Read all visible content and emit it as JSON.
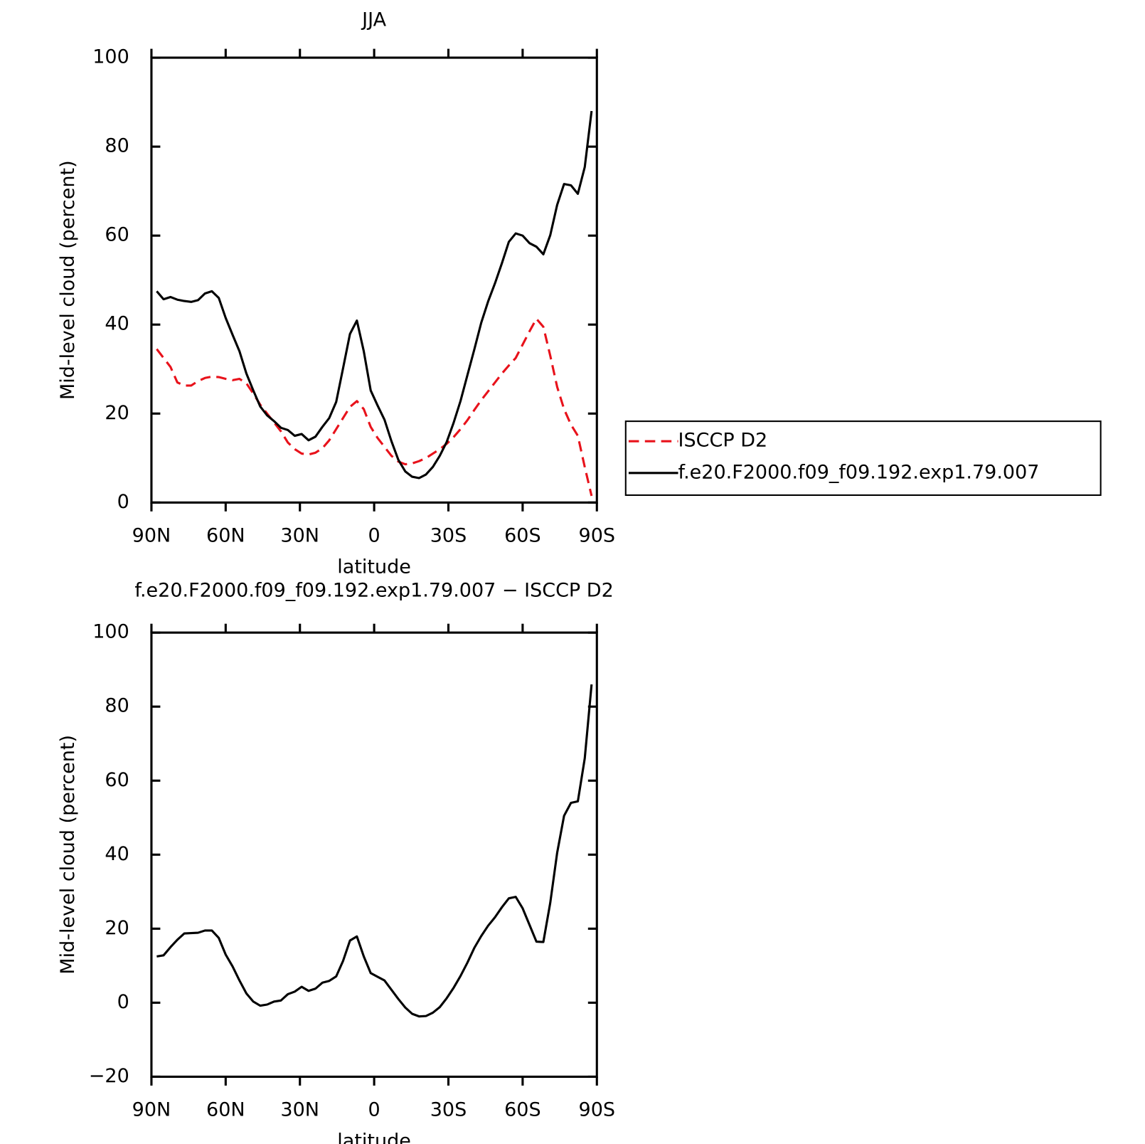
{
  "chart_data": [
    {
      "type": "line",
      "title": "JJA",
      "xlabel": "latitude",
      "ylabel": "Mid-level cloud (percent)",
      "x": [
        87.86,
        85.1,
        82.31,
        79.53,
        76.74,
        73.95,
        71.16,
        68.37,
        65.58,
        62.79,
        60.0,
        57.21,
        54.42,
        51.63,
        48.84,
        46.05,
        43.26,
        40.47,
        37.67,
        34.88,
        32.09,
        29.3,
        26.51,
        23.72,
        20.93,
        18.14,
        15.35,
        12.56,
        9.77,
        6.98,
        4.19,
        1.4,
        -1.4,
        -4.19,
        -6.98,
        -9.77,
        -12.56,
        -15.35,
        -18.14,
        -20.93,
        -23.72,
        -26.51,
        -29.3,
        -32.09,
        -34.88,
        -37.67,
        -40.47,
        -43.26,
        -46.05,
        -48.84,
        -51.63,
        -54.42,
        -57.21,
        -60.0,
        -62.79,
        -65.58,
        -68.37,
        -71.16,
        -73.95,
        -76.74,
        -79.53,
        -82.31,
        -85.1,
        -87.86
      ],
      "series": [
        {
          "name": "ISCCP D2",
          "color": "#e8121b",
          "linestyle": "dashed",
          "values": [
            34.5,
            32.5,
            30.5,
            27,
            26.3,
            26.3,
            27.3,
            28,
            28.3,
            28.2,
            27.8,
            27.5,
            27.8,
            26.8,
            24.5,
            22,
            20,
            18,
            16,
            13.5,
            12,
            11,
            10.8,
            11.2,
            12.2,
            14,
            16.5,
            19,
            21.5,
            22.8,
            21,
            17,
            14.5,
            12.5,
            10.5,
            9.2,
            8.6,
            8.8,
            9.3,
            10,
            11,
            12,
            13.2,
            14.7,
            16.5,
            18.5,
            20.8,
            23,
            25,
            27,
            29,
            30.8,
            32.5,
            35.5,
            38.5,
            41.3,
            39.5,
            33,
            26,
            21,
            17.5,
            15,
            8,
            1.5
          ]
        },
        {
          "name": "f.e20.F2000.f09_f09.192.exp1.79.007",
          "color": "#000000",
          "linestyle": "solid",
          "values": [
            47.5,
            45.7,
            46.2,
            45.6,
            45.3,
            45.1,
            45.5,
            47,
            47.5,
            46,
            41.5,
            37.7,
            34,
            29,
            25.2,
            21.6,
            19.6,
            18.3,
            16.8,
            16.3,
            15,
            15.4,
            14,
            14.8,
            17,
            19,
            22.6,
            30.2,
            37.9,
            40.9,
            34,
            25.2,
            21.8,
            18.6,
            13.8,
            9.6,
            7,
            5.8,
            5.5,
            6.3,
            8,
            10.5,
            13.6,
            17.9,
            22.8,
            28.6,
            34.4,
            40.4,
            45.2,
            49.3,
            53.8,
            58.6,
            60.5,
            60,
            58.3,
            57.5,
            55.8,
            60.1,
            66.9,
            71.6,
            71.3,
            69.4,
            75.4,
            88
          ]
        }
      ],
      "xlim": [
        90,
        -90
      ],
      "xticks": [
        {
          "value": 90,
          "label": "90N"
        },
        {
          "value": 60,
          "label": "60N"
        },
        {
          "value": 30,
          "label": "30N"
        },
        0,
        {
          "value": -30,
          "label": "30S"
        },
        {
          "value": -60,
          "label": "60S"
        },
        {
          "value": -90,
          "label": "90S"
        }
      ],
      "ylim": [
        0,
        100
      ],
      "yticks": [
        0,
        20,
        40,
        60,
        80,
        100
      ],
      "legend": "right"
    },
    {
      "type": "line",
      "title": "f.e20.F2000.f09_f09.192.exp1.79.007 − ISCCP D2",
      "xlabel": "latitude",
      "ylabel": "Mid-level cloud (percent)",
      "x": [
        87.86,
        85.1,
        82.31,
        79.53,
        76.74,
        73.95,
        71.16,
        68.37,
        65.58,
        62.79,
        60.0,
        57.21,
        54.42,
        51.63,
        48.84,
        46.05,
        43.26,
        40.47,
        37.67,
        34.88,
        32.09,
        29.3,
        26.51,
        23.72,
        20.93,
        18.14,
        15.35,
        12.56,
        9.77,
        6.98,
        4.19,
        1.4,
        -1.4,
        -4.19,
        -6.98,
        -9.77,
        -12.56,
        -15.35,
        -18.14,
        -20.93,
        -23.72,
        -26.51,
        -29.3,
        -32.09,
        -34.88,
        -37.67,
        -40.47,
        -43.26,
        -46.05,
        -48.84,
        -51.63,
        -54.42,
        -57.21,
        -60.0,
        -62.79,
        -65.58,
        -68.37,
        -71.16,
        -73.95,
        -76.74,
        -79.53,
        -82.31,
        -85.1,
        -87.86
      ],
      "series": [
        {
          "color": "#000000",
          "linestyle": "solid",
          "values": [
            12.5,
            12.8,
            15,
            17,
            18.7,
            18.8,
            18.9,
            19.5,
            19.5,
            17.5,
            13,
            9.8,
            6,
            2.5,
            0.3,
            -0.8,
            -0.5,
            0.3,
            0.6,
            2.3,
            3,
            4.3,
            3.2,
            3.8,
            5.4,
            5.9,
            7.1,
            11.3,
            16.8,
            17.9,
            12.5,
            8,
            7,
            6,
            3.5,
            1,
            -1.3,
            -3,
            -3.7,
            -3.6,
            -2.7,
            -1.2,
            1.2,
            4,
            7.2,
            10.8,
            14.8,
            18,
            20.8,
            23.1,
            25.8,
            28.2,
            28.6,
            25.5,
            21,
            16.5,
            16.4,
            27,
            40.5,
            50.5,
            54,
            54.4,
            66,
            86
          ]
        }
      ],
      "xlim": [
        90,
        -90
      ],
      "xticks": [
        {
          "value": 90,
          "label": "90N"
        },
        {
          "value": 60,
          "label": "60N"
        },
        {
          "value": 30,
          "label": "30N"
        },
        0,
        {
          "value": -30,
          "label": "30S"
        },
        {
          "value": -60,
          "label": "60S"
        },
        {
          "value": -90,
          "label": "90S"
        }
      ],
      "ylim": [
        -20,
        100
      ],
      "yticks": [
        {
          "value": -20,
          "label": "−20"
        },
        0,
        20,
        40,
        60,
        80,
        100
      ]
    }
  ]
}
